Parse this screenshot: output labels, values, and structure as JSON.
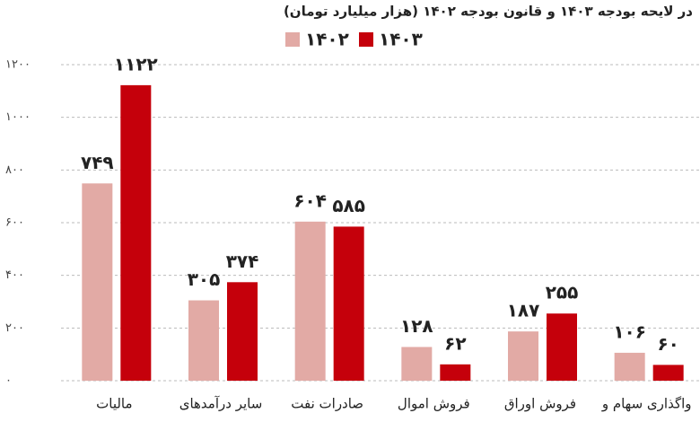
{
  "chart_data": {
    "type": "bar",
    "title": "در لایحه بودجه ۱۴۰۳ و قانون بودجه ۱۴۰۲ (هزار میلیارد تومان)",
    "categories": [
      "مالیات",
      "سایر درآمدهای",
      "صادرات نفت",
      "فروش اموال",
      "فروش اوراق",
      "واگذاری سهام و"
    ],
    "series": [
      {
        "name": "۱۴۰۲",
        "color": "#e2aaa5",
        "values": [
          749,
          305,
          604,
          128,
          187,
          106
        ],
        "value_labels": [
          "۷۴۹",
          "۳۰۵",
          "۶۰۴",
          "۱۲۸",
          "۱۸۷",
          "۱۰۶"
        ]
      },
      {
        "name": "۱۴۰۳",
        "color": "#c5000b",
        "values": [
          1122,
          374,
          585,
          62,
          255,
          60
        ],
        "value_labels": [
          "۱۱۲۲",
          "۳۷۴",
          "۵۸۵",
          "۶۲",
          "۲۵۵",
          "۶۰"
        ]
      }
    ],
    "ylim": [
      0,
      1200
    ],
    "yticks": [
      {
        "value": 0,
        "label": "۰"
      },
      {
        "value": 200,
        "label": "۲۰۰"
      },
      {
        "value": 400,
        "label": "۴۰۰"
      },
      {
        "value": 600,
        "label": "۶۰۰"
      },
      {
        "value": 800,
        "label": "۸۰۰"
      },
      {
        "value": 1000,
        "label": "۱۰۰۰"
      },
      {
        "value": 1200,
        "label": "۱۲۰۰"
      }
    ],
    "grid": true
  }
}
